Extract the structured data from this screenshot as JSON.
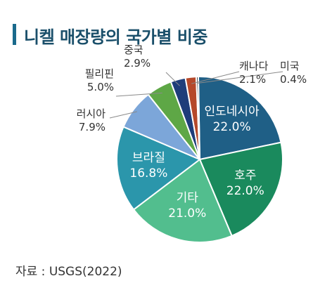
{
  "title": "니켈 매장량의 국가별 비중",
  "source": "자료 : USGS(2022)",
  "chart_data": {
    "type": "pie",
    "title": "니켈 매장량의 국가별 비중",
    "unit": "%",
    "slices": [
      {
        "name": "인도네시아",
        "value": 22.0,
        "label": "22.0%",
        "color": "#1f5f86"
      },
      {
        "name": "호주",
        "value": 22.0,
        "label": "22.0%",
        "color": "#1a8a5d"
      },
      {
        "name": "기타",
        "value": 21.0,
        "label": "21.0%",
        "color": "#52be8e"
      },
      {
        "name": "브라질",
        "value": 16.8,
        "label": "16.8%",
        "color": "#2b96ab"
      },
      {
        "name": "러시아",
        "value": 7.9,
        "label": "7.9%",
        "color": "#7ca6d9"
      },
      {
        "name": "필리핀",
        "value": 5.0,
        "label": "5.0%",
        "color": "#5ea746"
      },
      {
        "name": "중국",
        "value": 2.9,
        "label": "2.9%",
        "color": "#1e3d7a"
      },
      {
        "name": "캐나다",
        "value": 2.1,
        "label": "2.1%",
        "color": "#b5482a"
      },
      {
        "name": "미국",
        "value": 0.4,
        "label": "0.4%",
        "color": "#3a3a3a"
      }
    ]
  }
}
